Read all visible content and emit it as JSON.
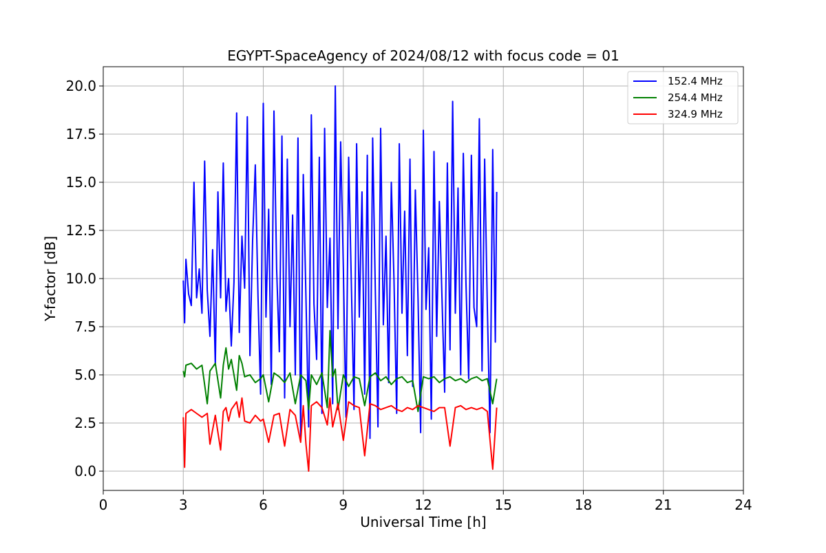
{
  "chart_data": {
    "type": "line",
    "title": "EGYPT-SpaceAgency of 2024/08/12 with focus code = 01",
    "xlabel": "Universal Time [h]",
    "ylabel": "Y-factor [dB]",
    "xlim": [
      0,
      24
    ],
    "ylim": [
      -1.0,
      21.0
    ],
    "x_ticks": [
      0,
      3,
      6,
      9,
      12,
      15,
      18,
      21,
      24
    ],
    "x_tick_labels": [
      "0",
      "3",
      "6",
      "9",
      "12",
      "15",
      "18",
      "21",
      "24"
    ],
    "y_ticks": [
      0.0,
      2.5,
      5.0,
      7.5,
      10.0,
      12.5,
      15.0,
      17.5,
      20.0
    ],
    "y_tick_labels": [
      "0.0",
      "2.5",
      "5.0",
      "7.5",
      "10.0",
      "12.5",
      "15.0",
      "17.5",
      "20.0"
    ],
    "grid": true,
    "legend_position": "top-right",
    "series": [
      {
        "name": "152.4 MHz",
        "color": "#0000ff",
        "x": [
          3.0,
          3.05,
          3.1,
          3.2,
          3.3,
          3.4,
          3.5,
          3.6,
          3.7,
          3.8,
          3.9,
          4.0,
          4.1,
          4.2,
          4.3,
          4.4,
          4.5,
          4.6,
          4.7,
          4.8,
          4.9,
          5.0,
          5.1,
          5.2,
          5.3,
          5.4,
          5.5,
          5.6,
          5.7,
          5.8,
          5.9,
          6.0,
          6.1,
          6.2,
          6.3,
          6.4,
          6.5,
          6.6,
          6.7,
          6.8,
          6.9,
          7.0,
          7.1,
          7.2,
          7.3,
          7.4,
          7.5,
          7.6,
          7.7,
          7.8,
          7.9,
          8.0,
          8.1,
          8.2,
          8.3,
          8.4,
          8.5,
          8.6,
          8.7,
          8.8,
          8.9,
          9.0,
          9.1,
          9.2,
          9.3,
          9.4,
          9.5,
          9.6,
          9.7,
          9.8,
          9.9,
          10.0,
          10.1,
          10.2,
          10.3,
          10.4,
          10.5,
          10.6,
          10.7,
          10.8,
          10.9,
          11.0,
          11.1,
          11.2,
          11.3,
          11.4,
          11.5,
          11.6,
          11.7,
          11.8,
          11.9,
          12.0,
          12.1,
          12.2,
          12.3,
          12.4,
          12.5,
          12.6,
          12.7,
          12.8,
          12.9,
          13.0,
          13.1,
          13.2,
          13.3,
          13.4,
          13.5,
          13.6,
          13.7,
          13.8,
          13.9,
          14.0,
          14.1,
          14.2,
          14.3,
          14.4,
          14.5,
          14.6,
          14.7,
          14.75
        ],
        "y": [
          9.9,
          7.7,
          11.0,
          9.2,
          8.6,
          15.0,
          9.0,
          10.5,
          8.2,
          16.1,
          9.4,
          7.0,
          11.5,
          5.5,
          14.5,
          9.0,
          16.0,
          8.3,
          10.0,
          6.5,
          9.8,
          18.6,
          7.2,
          12.2,
          9.5,
          18.4,
          6.0,
          12.0,
          15.9,
          9.1,
          4.0,
          19.1,
          8.0,
          13.6,
          4.5,
          18.7,
          10.5,
          6.2,
          17.4,
          3.8,
          16.2,
          7.5,
          13.3,
          5.0,
          17.3,
          1.8,
          15.4,
          9.0,
          2.3,
          18.5,
          8.7,
          5.8,
          16.3,
          3.0,
          17.8,
          8.5,
          12.1,
          3.5,
          20.0,
          7.4,
          17.1,
          10.6,
          2.8,
          16.3,
          9.8,
          3.2,
          17.0,
          8.0,
          14.5,
          4.0,
          16.4,
          1.7,
          17.3,
          9.3,
          2.3,
          17.8,
          7.6,
          12.2,
          4.6,
          15.0,
          9.9,
          3.0,
          17.0,
          8.2,
          13.5,
          6.0,
          16.2,
          4.4,
          14.6,
          9.0,
          2.0,
          17.7,
          8.4,
          11.6,
          2.7,
          16.6,
          7.0,
          14.0,
          9.0,
          4.1,
          16.0,
          6.3,
          19.2,
          8.2,
          14.7,
          5.0,
          16.5,
          9.7,
          4.8,
          16.4,
          8.5,
          7.5,
          18.3,
          5.2,
          16.2,
          8.5,
          2.0,
          16.7,
          6.7,
          14.5
        ]
      },
      {
        "name": "254.4 MHz",
        "color": "#008000",
        "x": [
          3.0,
          3.05,
          3.1,
          3.3,
          3.5,
          3.7,
          3.9,
          4.0,
          4.2,
          4.4,
          4.5,
          4.6,
          4.7,
          4.8,
          5.0,
          5.1,
          5.2,
          5.3,
          5.5,
          5.7,
          5.9,
          6.0,
          6.2,
          6.4,
          6.6,
          6.8,
          7.0,
          7.2,
          7.4,
          7.6,
          7.7,
          7.8,
          8.0,
          8.2,
          8.4,
          8.5,
          8.6,
          8.7,
          8.8,
          9.0,
          9.2,
          9.4,
          9.6,
          9.8,
          10.0,
          10.2,
          10.4,
          10.6,
          10.8,
          11.0,
          11.2,
          11.4,
          11.6,
          11.8,
          12.0,
          12.2,
          12.4,
          12.6,
          12.8,
          13.0,
          13.2,
          13.4,
          13.6,
          13.8,
          14.0,
          14.2,
          14.4,
          14.6,
          14.75
        ],
        "y": [
          5.2,
          4.9,
          5.5,
          5.6,
          5.3,
          5.5,
          3.5,
          5.2,
          5.6,
          3.8,
          5.5,
          6.4,
          5.3,
          5.8,
          4.2,
          6.0,
          5.6,
          4.9,
          5.0,
          4.6,
          4.8,
          5.0,
          3.6,
          5.1,
          4.9,
          4.6,
          5.1,
          3.5,
          5.0,
          4.7,
          3.2,
          5.0,
          4.5,
          5.1,
          3.3,
          7.3,
          4.9,
          5.3,
          3.2,
          5.0,
          4.4,
          4.9,
          4.8,
          3.4,
          4.9,
          5.1,
          4.7,
          4.9,
          4.5,
          4.8,
          4.9,
          4.6,
          4.7,
          3.1,
          4.9,
          4.8,
          4.9,
          4.6,
          4.8,
          4.9,
          4.7,
          4.8,
          4.6,
          4.8,
          4.9,
          4.7,
          4.8,
          3.5,
          4.8
        ]
      },
      {
        "name": "324.9 MHz",
        "color": "#ff0000",
        "x": [
          3.0,
          3.05,
          3.1,
          3.3,
          3.5,
          3.7,
          3.9,
          4.0,
          4.2,
          4.4,
          4.5,
          4.6,
          4.7,
          4.8,
          5.0,
          5.1,
          5.2,
          5.3,
          5.5,
          5.7,
          5.9,
          6.0,
          6.2,
          6.4,
          6.6,
          6.8,
          7.0,
          7.2,
          7.4,
          7.5,
          7.6,
          7.7,
          7.8,
          8.0,
          8.2,
          8.4,
          8.5,
          8.6,
          8.8,
          9.0,
          9.2,
          9.4,
          9.6,
          9.8,
          10.0,
          10.2,
          10.4,
          10.6,
          10.8,
          11.0,
          11.2,
          11.4,
          11.6,
          11.8,
          12.0,
          12.2,
          12.4,
          12.6,
          12.8,
          13.0,
          13.2,
          13.4,
          13.6,
          13.8,
          14.0,
          14.2,
          14.4,
          14.6,
          14.75
        ],
        "y": [
          2.8,
          0.2,
          3.0,
          3.2,
          3.0,
          2.8,
          3.0,
          1.4,
          2.9,
          1.1,
          3.1,
          3.3,
          2.6,
          3.2,
          3.6,
          2.8,
          3.8,
          2.6,
          2.5,
          2.9,
          2.6,
          2.7,
          1.5,
          2.9,
          3.0,
          1.3,
          3.2,
          2.9,
          1.5,
          3.4,
          1.4,
          0.0,
          3.4,
          3.6,
          3.3,
          2.4,
          3.8,
          2.3,
          3.5,
          1.6,
          3.6,
          3.4,
          3.3,
          0.8,
          3.5,
          3.4,
          3.2,
          3.3,
          3.4,
          3.2,
          3.1,
          3.3,
          3.2,
          3.4,
          3.3,
          3.2,
          3.1,
          3.3,
          3.3,
          1.3,
          3.3,
          3.4,
          3.2,
          3.3,
          3.2,
          3.3,
          3.1,
          0.1,
          3.3
        ]
      }
    ]
  }
}
